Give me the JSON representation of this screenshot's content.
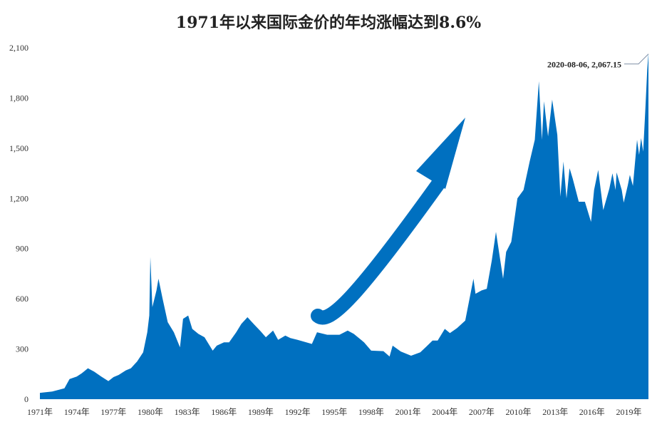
{
  "chart_data": {
    "type": "area",
    "title": "1971年以来国际金价的年均涨幅达到8.6%",
    "xlabel": "",
    "ylabel": "",
    "x_range": [
      "1971-01-01",
      "2020-08-06"
    ],
    "ylim": [
      0,
      2100
    ],
    "y_ticks": [
      "0",
      "300",
      "600",
      "900",
      "1,200",
      "1,500",
      "1,800",
      "2,100"
    ],
    "y_tick_values": [
      0,
      300,
      600,
      900,
      1200,
      1500,
      1800,
      2100
    ],
    "x_ticks": [
      "1971年",
      "1974年",
      "1977年",
      "1980年",
      "1983年",
      "1986年",
      "1989年",
      "1992年",
      "1995年",
      "1998年",
      "2001年",
      "2004年",
      "2007年",
      "2010年",
      "2013年",
      "2016年",
      "2019年"
    ],
    "x_tick_years": [
      1971,
      1974,
      1977,
      1980,
      1983,
      1986,
      1989,
      1992,
      1995,
      1998,
      2001,
      2004,
      2007,
      2010,
      2013,
      2016,
      2019
    ],
    "grid": false,
    "legend": "none",
    "series": [
      {
        "color": "#0070c0",
        "points": [
          [
            "1971-01",
            38
          ],
          [
            "1972-01",
            46
          ],
          [
            "1973-01",
            65
          ],
          [
            "1973-06",
            120
          ],
          [
            "1974-01",
            135
          ],
          [
            "1974-06",
            155
          ],
          [
            "1974-12",
            185
          ],
          [
            "1975-06",
            165
          ],
          [
            "1976-01",
            135
          ],
          [
            "1976-08",
            108
          ],
          [
            "1977-01",
            132
          ],
          [
            "1977-06",
            145
          ],
          [
            "1978-01",
            172
          ],
          [
            "1978-06",
            185
          ],
          [
            "1978-12",
            225
          ],
          [
            "1979-06",
            280
          ],
          [
            "1979-10",
            400
          ],
          [
            "1979-12",
            500
          ],
          [
            "1980-01",
            850
          ],
          [
            "1980-03",
            550
          ],
          [
            "1980-07",
            650
          ],
          [
            "1980-09",
            720
          ],
          [
            "1981-01",
            600
          ],
          [
            "1981-06",
            460
          ],
          [
            "1981-12",
            400
          ],
          [
            "1982-06",
            310
          ],
          [
            "1982-09",
            480
          ],
          [
            "1983-02",
            500
          ],
          [
            "1983-06",
            420
          ],
          [
            "1983-12",
            390
          ],
          [
            "1984-06",
            370
          ],
          [
            "1985-02",
            290
          ],
          [
            "1985-06",
            320
          ],
          [
            "1986-01",
            340
          ],
          [
            "1986-06",
            340
          ],
          [
            "1987-01",
            400
          ],
          [
            "1987-06",
            450
          ],
          [
            "1987-12",
            490
          ],
          [
            "1988-06",
            450
          ],
          [
            "1989-01",
            405
          ],
          [
            "1989-06",
            370
          ],
          [
            "1990-01",
            410
          ],
          [
            "1990-06",
            355
          ],
          [
            "1991-01",
            380
          ],
          [
            "1991-06",
            365
          ],
          [
            "1992-01",
            355
          ],
          [
            "1993-03",
            330
          ],
          [
            "1993-08",
            400
          ],
          [
            "1994-06",
            385
          ],
          [
            "1995-06",
            385
          ],
          [
            "1996-02",
            410
          ],
          [
            "1996-08",
            390
          ],
          [
            "1997-06",
            340
          ],
          [
            "1998-01",
            290
          ],
          [
            "1999-01",
            287
          ],
          [
            "1999-07",
            255
          ],
          [
            "1999-10",
            320
          ],
          [
            "2000-06",
            285
          ],
          [
            "2001-04",
            260
          ],
          [
            "2002-01",
            280
          ],
          [
            "2002-07",
            315
          ],
          [
            "2003-01",
            350
          ],
          [
            "2003-06",
            350
          ],
          [
            "2004-01",
            420
          ],
          [
            "2004-06",
            395
          ],
          [
            "2005-01",
            425
          ],
          [
            "2005-09",
            470
          ],
          [
            "2006-05",
            720
          ],
          [
            "2006-07",
            630
          ],
          [
            "2007-01",
            650
          ],
          [
            "2007-06",
            660
          ],
          [
            "2007-11",
            830
          ],
          [
            "2008-03",
            1000
          ],
          [
            "2008-10",
            720
          ],
          [
            "2009-01",
            880
          ],
          [
            "2009-06",
            940
          ],
          [
            "2009-12",
            1200
          ],
          [
            "2010-06",
            1250
          ],
          [
            "2010-12",
            1420
          ],
          [
            "2011-05",
            1550
          ],
          [
            "2011-09",
            1900
          ],
          [
            "2011-12",
            1550
          ],
          [
            "2012-02",
            1780
          ],
          [
            "2012-06",
            1570
          ],
          [
            "2012-10",
            1790
          ],
          [
            "2013-03",
            1580
          ],
          [
            "2013-06",
            1210
          ],
          [
            "2013-09",
            1420
          ],
          [
            "2013-12",
            1200
          ],
          [
            "2014-03",
            1380
          ],
          [
            "2014-06",
            1320
          ],
          [
            "2014-12",
            1180
          ],
          [
            "2015-06",
            1180
          ],
          [
            "2015-12",
            1060
          ],
          [
            "2016-03",
            1250
          ],
          [
            "2016-07",
            1370
          ],
          [
            "2016-12",
            1130
          ],
          [
            "2017-06",
            1260
          ],
          [
            "2017-09",
            1350
          ],
          [
            "2017-12",
            1250
          ],
          [
            "2018-01",
            1355
          ],
          [
            "2018-06",
            1250
          ],
          [
            "2018-08",
            1175
          ],
          [
            "2018-12",
            1280
          ],
          [
            "2019-02",
            1340
          ],
          [
            "2019-05",
            1275
          ],
          [
            "2019-09",
            1550
          ],
          [
            "2019-11",
            1460
          ],
          [
            "2020-01",
            1560
          ],
          [
            "2020-03",
            1480
          ],
          [
            "2020-05",
            1720
          ],
          [
            "2020-07",
            1970
          ],
          [
            "2020-08-06",
            2067
          ]
        ]
      }
    ],
    "annotations": [
      {
        "text": "2020-08-06, 2,067.15",
        "x": "2020-08-06",
        "y": 2067.15
      }
    ]
  }
}
